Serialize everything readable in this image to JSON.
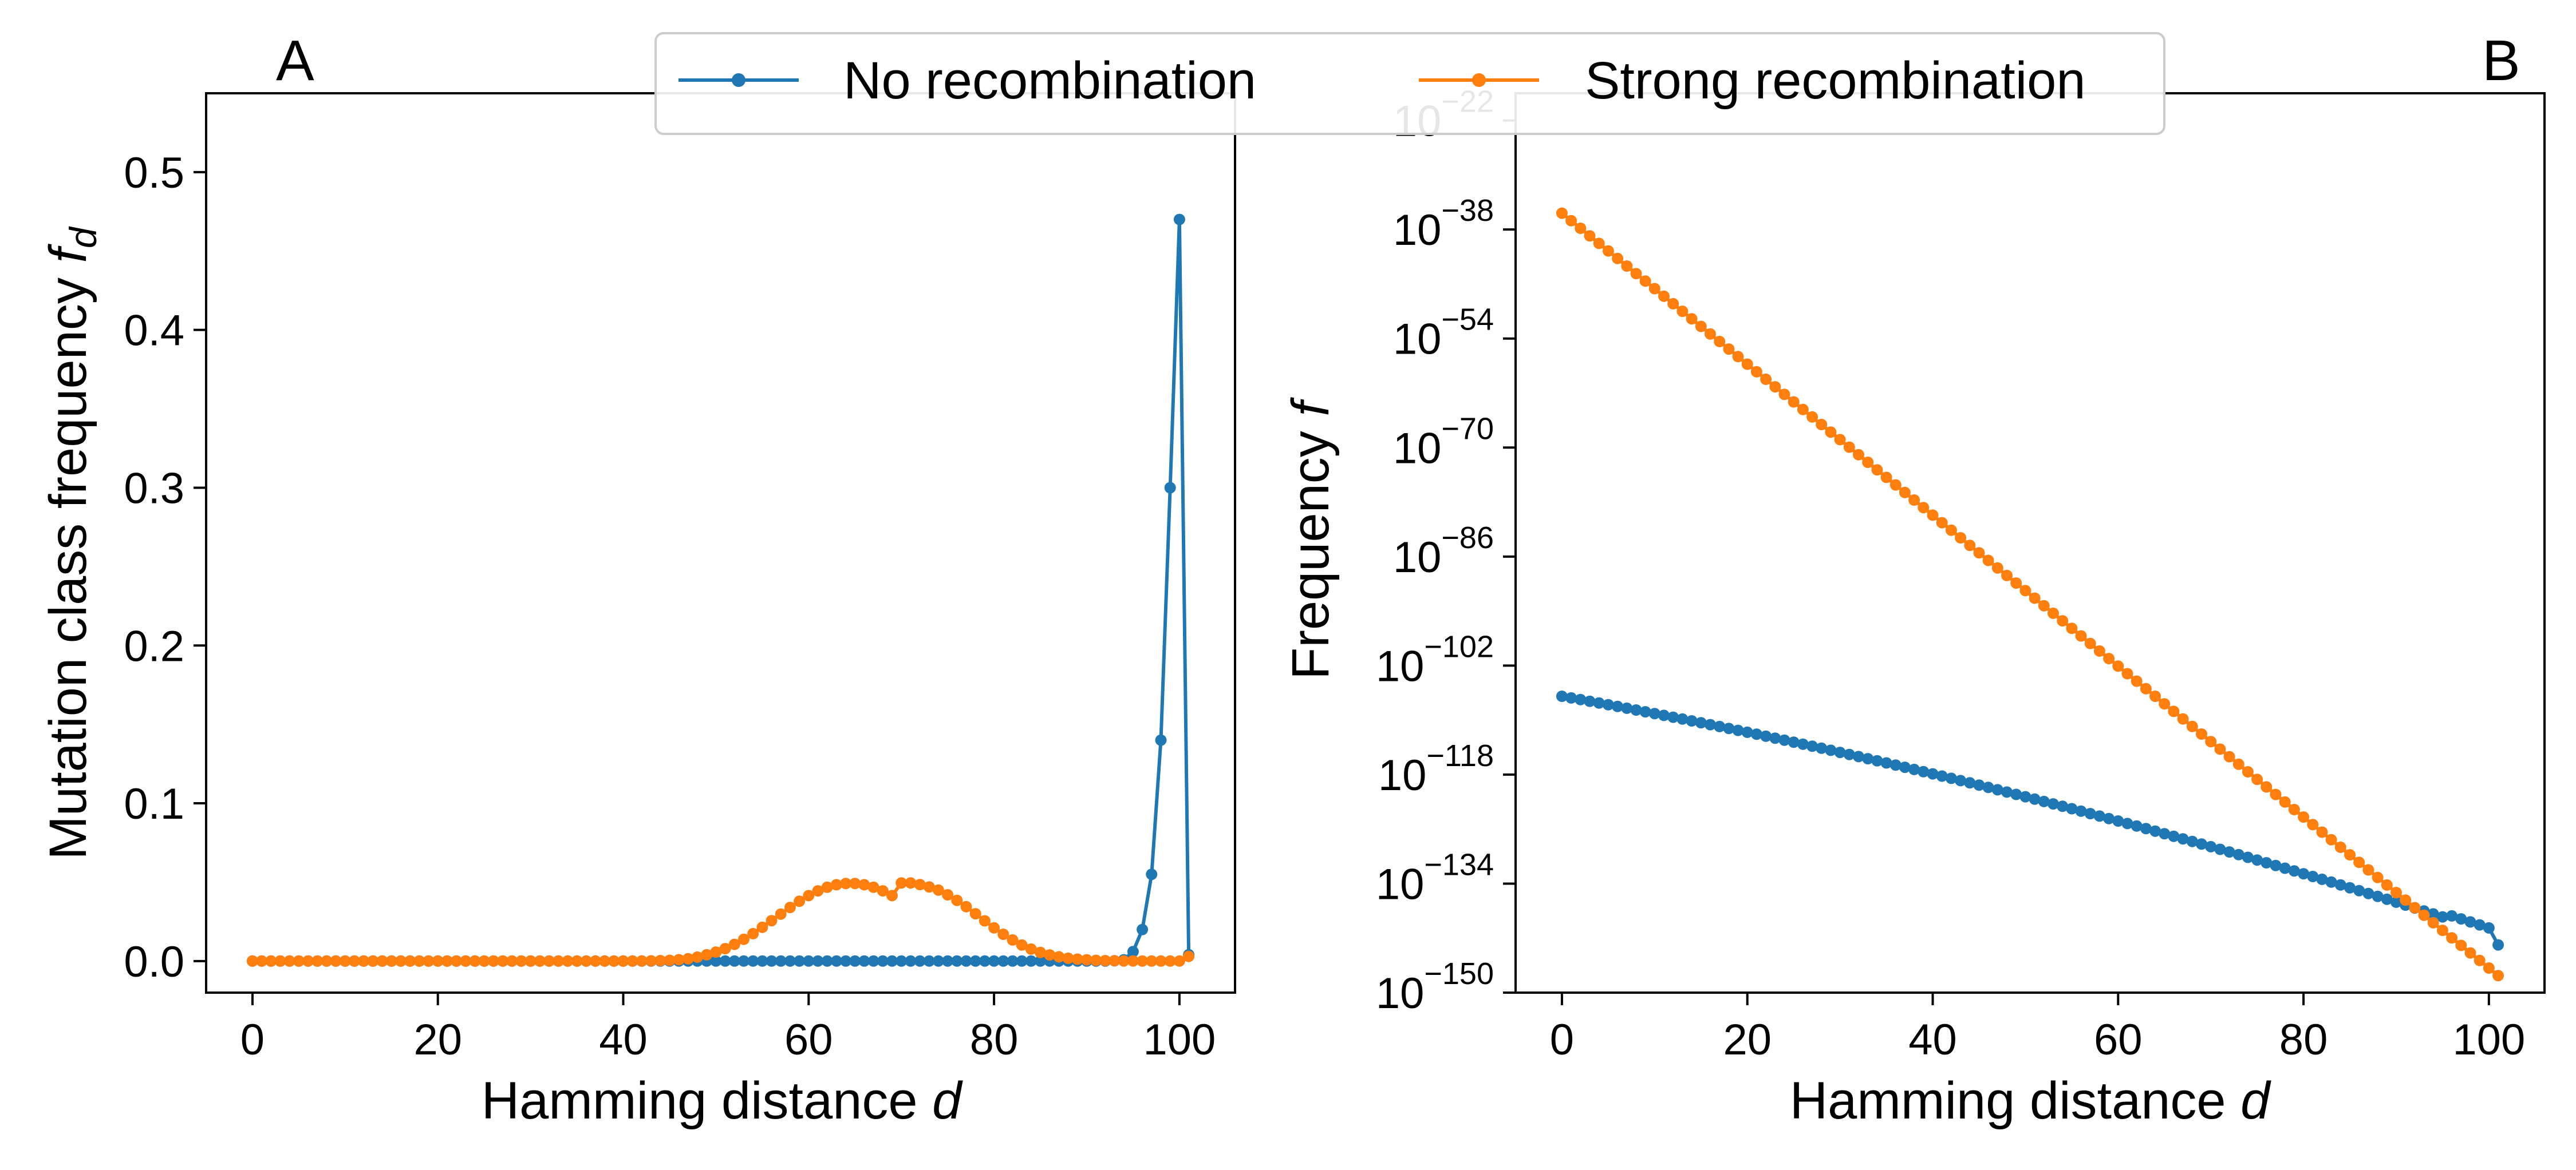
{
  "legend": {
    "entries": [
      {
        "label": "No recombination",
        "color": "#1f77b4"
      },
      {
        "label": "Strong recombination",
        "color": "#ff7f0e"
      }
    ],
    "placement": "top-center"
  },
  "chart_data": [
    {
      "panel": "A",
      "type": "line",
      "title": "",
      "xlabel": "Hamming distance",
      "xlabel_var": "d",
      "ylabel": "Mutation class frequency",
      "ylabel_var": "f",
      "ylabel_sub": "d",
      "xlim": [
        -5,
        106
      ],
      "ylim": [
        -0.02,
        0.55
      ],
      "x_ticks": [
        0,
        20,
        40,
        60,
        80,
        100
      ],
      "x_tick_labels": [
        "0",
        "20",
        "40",
        "60",
        "80",
        "100"
      ],
      "y_ticks": [
        0.0,
        0.1,
        0.2,
        0.3,
        0.4,
        0.5
      ],
      "y_tick_labels": [
        "0.0",
        "0.1",
        "0.2",
        "0.3",
        "0.4",
        "0.5"
      ],
      "grid": false,
      "x": [
        0,
        1,
        2,
        3,
        4,
        5,
        6,
        7,
        8,
        9,
        10,
        11,
        12,
        13,
        14,
        15,
        16,
        17,
        18,
        19,
        20,
        21,
        22,
        23,
        24,
        25,
        26,
        27,
        28,
        29,
        30,
        31,
        32,
        33,
        34,
        35,
        36,
        37,
        38,
        39,
        40,
        41,
        42,
        43,
        44,
        45,
        46,
        47,
        48,
        49,
        50,
        51,
        52,
        53,
        54,
        55,
        56,
        57,
        58,
        59,
        60,
        61,
        62,
        63,
        64,
        65,
        66,
        67,
        68,
        69,
        70,
        71,
        72,
        73,
        74,
        75,
        76,
        77,
        78,
        79,
        80,
        81,
        82,
        83,
        84,
        85,
        86,
        87,
        88,
        89,
        90,
        91,
        92,
        93,
        94,
        95,
        96,
        97,
        98,
        99,
        100,
        101
      ],
      "series": [
        {
          "name": "No recombination",
          "color": "#1f77b4",
          "values": [
            0,
            0,
            0,
            0,
            0,
            0,
            0,
            0,
            0,
            0,
            0,
            0,
            0,
            0,
            0,
            0,
            0,
            0,
            0,
            0,
            0,
            0,
            0,
            0,
            0,
            0,
            0,
            0,
            0,
            0,
            0,
            0,
            0,
            0,
            0,
            0,
            0,
            0,
            0,
            0,
            0,
            0,
            0,
            0,
            0,
            0,
            0,
            0,
            0,
            0,
            0,
            0,
            0,
            0,
            0,
            0,
            0,
            0,
            0,
            0,
            0,
            0,
            0,
            0,
            0,
            0,
            0,
            0,
            0,
            0,
            0,
            0,
            0,
            0,
            0,
            0,
            0,
            0,
            0,
            0,
            0,
            0,
            0,
            0,
            0,
            0,
            0,
            0,
            0,
            0,
            0,
            0,
            0,
            0.0002,
            0.0008,
            0.006,
            0.02,
            0.055,
            0.14,
            0.3,
            0.47,
            0.004
          ]
        },
        {
          "name": "Strong recombination",
          "color": "#ff7f0e",
          "values": [
            0,
            0,
            0,
            0,
            0,
            0,
            0,
            0,
            0,
            0,
            0,
            0,
            0,
            0,
            0,
            0,
            0,
            0,
            0,
            0,
            0,
            0,
            0,
            0,
            0,
            0,
            0,
            0,
            0,
            0,
            0,
            0,
            0,
            0,
            0,
            0,
            0,
            0,
            0,
            0,
            2e-05,
            4e-05,
            8e-05,
            0.00015,
            0.0003,
            0.0005,
            0.0009,
            0.0015,
            0.0025,
            0.004,
            0.0057,
            0.0079,
            0.0106,
            0.0138,
            0.0174,
            0.0214,
            0.0256,
            0.0298,
            0.034,
            0.0379,
            0.0415,
            0.0445,
            0.0468,
            0.0484,
            0.0492,
            0.0492,
            0.0484,
            0.0468,
            0.0445,
            0.0415,
            0.0495,
            0.0495,
            0.0485,
            0.047,
            0.045,
            0.042,
            0.0385,
            0.0345,
            0.03,
            0.0255,
            0.0211,
            0.017,
            0.0134,
            0.0102,
            0.0076,
            0.0055,
            0.0039,
            0.0027,
            0.0018,
            0.0012,
            0.0008,
            0.0005,
            0.0003,
            0.0002,
            0.0001,
            0.0001,
            5e-05,
            3e-05,
            2e-05,
            1e-05,
            1e-05,
            0.003
          ]
        }
      ]
    },
    {
      "panel": "B",
      "type": "line",
      "title": "",
      "xlabel": "Hamming distance",
      "xlabel_var": "d",
      "ylabel": "Frequency",
      "ylabel_var": "f",
      "yscale": "log",
      "xlim": [
        -5,
        106
      ],
      "ylim_exponent": [
        -150,
        -18
      ],
      "x_ticks": [
        0,
        20,
        40,
        60,
        80,
        100
      ],
      "x_tick_labels": [
        "0",
        "20",
        "40",
        "60",
        "80",
        "100"
      ],
      "y_tick_exponents": [
        -150,
        -134,
        -118,
        -102,
        -86,
        -70,
        -54,
        -38,
        -22
      ],
      "y_tick_base": "10",
      "y_tick_exponent_labels": [
        "−150",
        "−134",
        "−118",
        "−102",
        "−86",
        "−70",
        "−54",
        "−38",
        "−22"
      ],
      "grid": false,
      "series": [
        {
          "name": "No recombination",
          "color": "#1f77b4",
          "model": "log10 f = -106.4 - 0.244 d - 0.00102 d^2 for d = 0..100 (slight drop near 100)",
          "log10_values_at": {
            "0": -106.5,
            "20": -111.7,
            "40": -117.6,
            "60": -124.7,
            "80": -132.6,
            "95": -138.3,
            "100": -140.5,
            "101": -143.0
          }
        },
        {
          "name": "Strong recombination",
          "color": "#ff7f0e",
          "model": "log10 f linear in d",
          "log10_values_at": {
            "0": -35.6,
            "101": -147.5
          }
        }
      ]
    }
  ],
  "panel_labels": {
    "a": "A",
    "b": "B"
  }
}
